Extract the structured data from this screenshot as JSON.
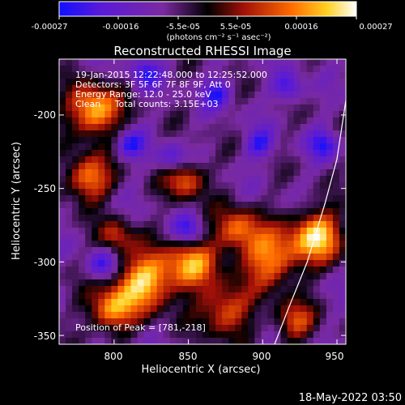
{
  "colorbar": {
    "ticks": [
      "-0.00027",
      "-0.00016",
      "-5.5e-05",
      "5.5e-05",
      "0.00016",
      "0.00027"
    ],
    "units_label": "(photons cm⁻² s⁻¹ asec⁻²)",
    "colors": [
      "#1010ff",
      "#5a1ad8",
      "#7a2aa0",
      "#000000",
      "#a01008",
      "#ff6a00",
      "#ffd020",
      "#ffffff"
    ]
  },
  "footer": {
    "timestamp": "18-May-2022 03:50"
  },
  "chart_data": {
    "type": "heatmap",
    "title": "Reconstructed RHESSI Image",
    "xlabel": "Heliocentric X (arcsec)",
    "ylabel": "Heliocentric Y (arcsec)",
    "xlim": [
      763,
      956
    ],
    "ylim": [
      -356,
      -162
    ],
    "xticks": [
      "800",
      "850",
      "900",
      "950"
    ],
    "yticks": [
      "-200",
      "-250",
      "-300",
      "-350"
    ],
    "xtick_values": [
      800,
      850,
      900,
      950
    ],
    "ytick_values": [
      -200,
      -250,
      -300,
      -350
    ],
    "color_range": [
      -0.00027,
      0.00027
    ],
    "annotations": [
      "19-Jan-2015 12:22:48.000 to 12:25:52.000",
      "Detectors: 3F 5F 6F 7F 8F 9F, Att 0",
      "Energy Range: 12.0 - 25.0 keV",
      "Clean     Total counts: 3.15E+03"
    ],
    "peak_label": "Position of Peak = [781,-218]",
    "peak": [
      781,
      -218
    ],
    "limb_curve": [
      [
        908,
        -356
      ],
      [
        918,
        -330
      ],
      [
        930,
        -300
      ],
      [
        942,
        -260
      ],
      [
        950,
        -230
      ],
      [
        956,
        -190
      ]
    ]
  }
}
